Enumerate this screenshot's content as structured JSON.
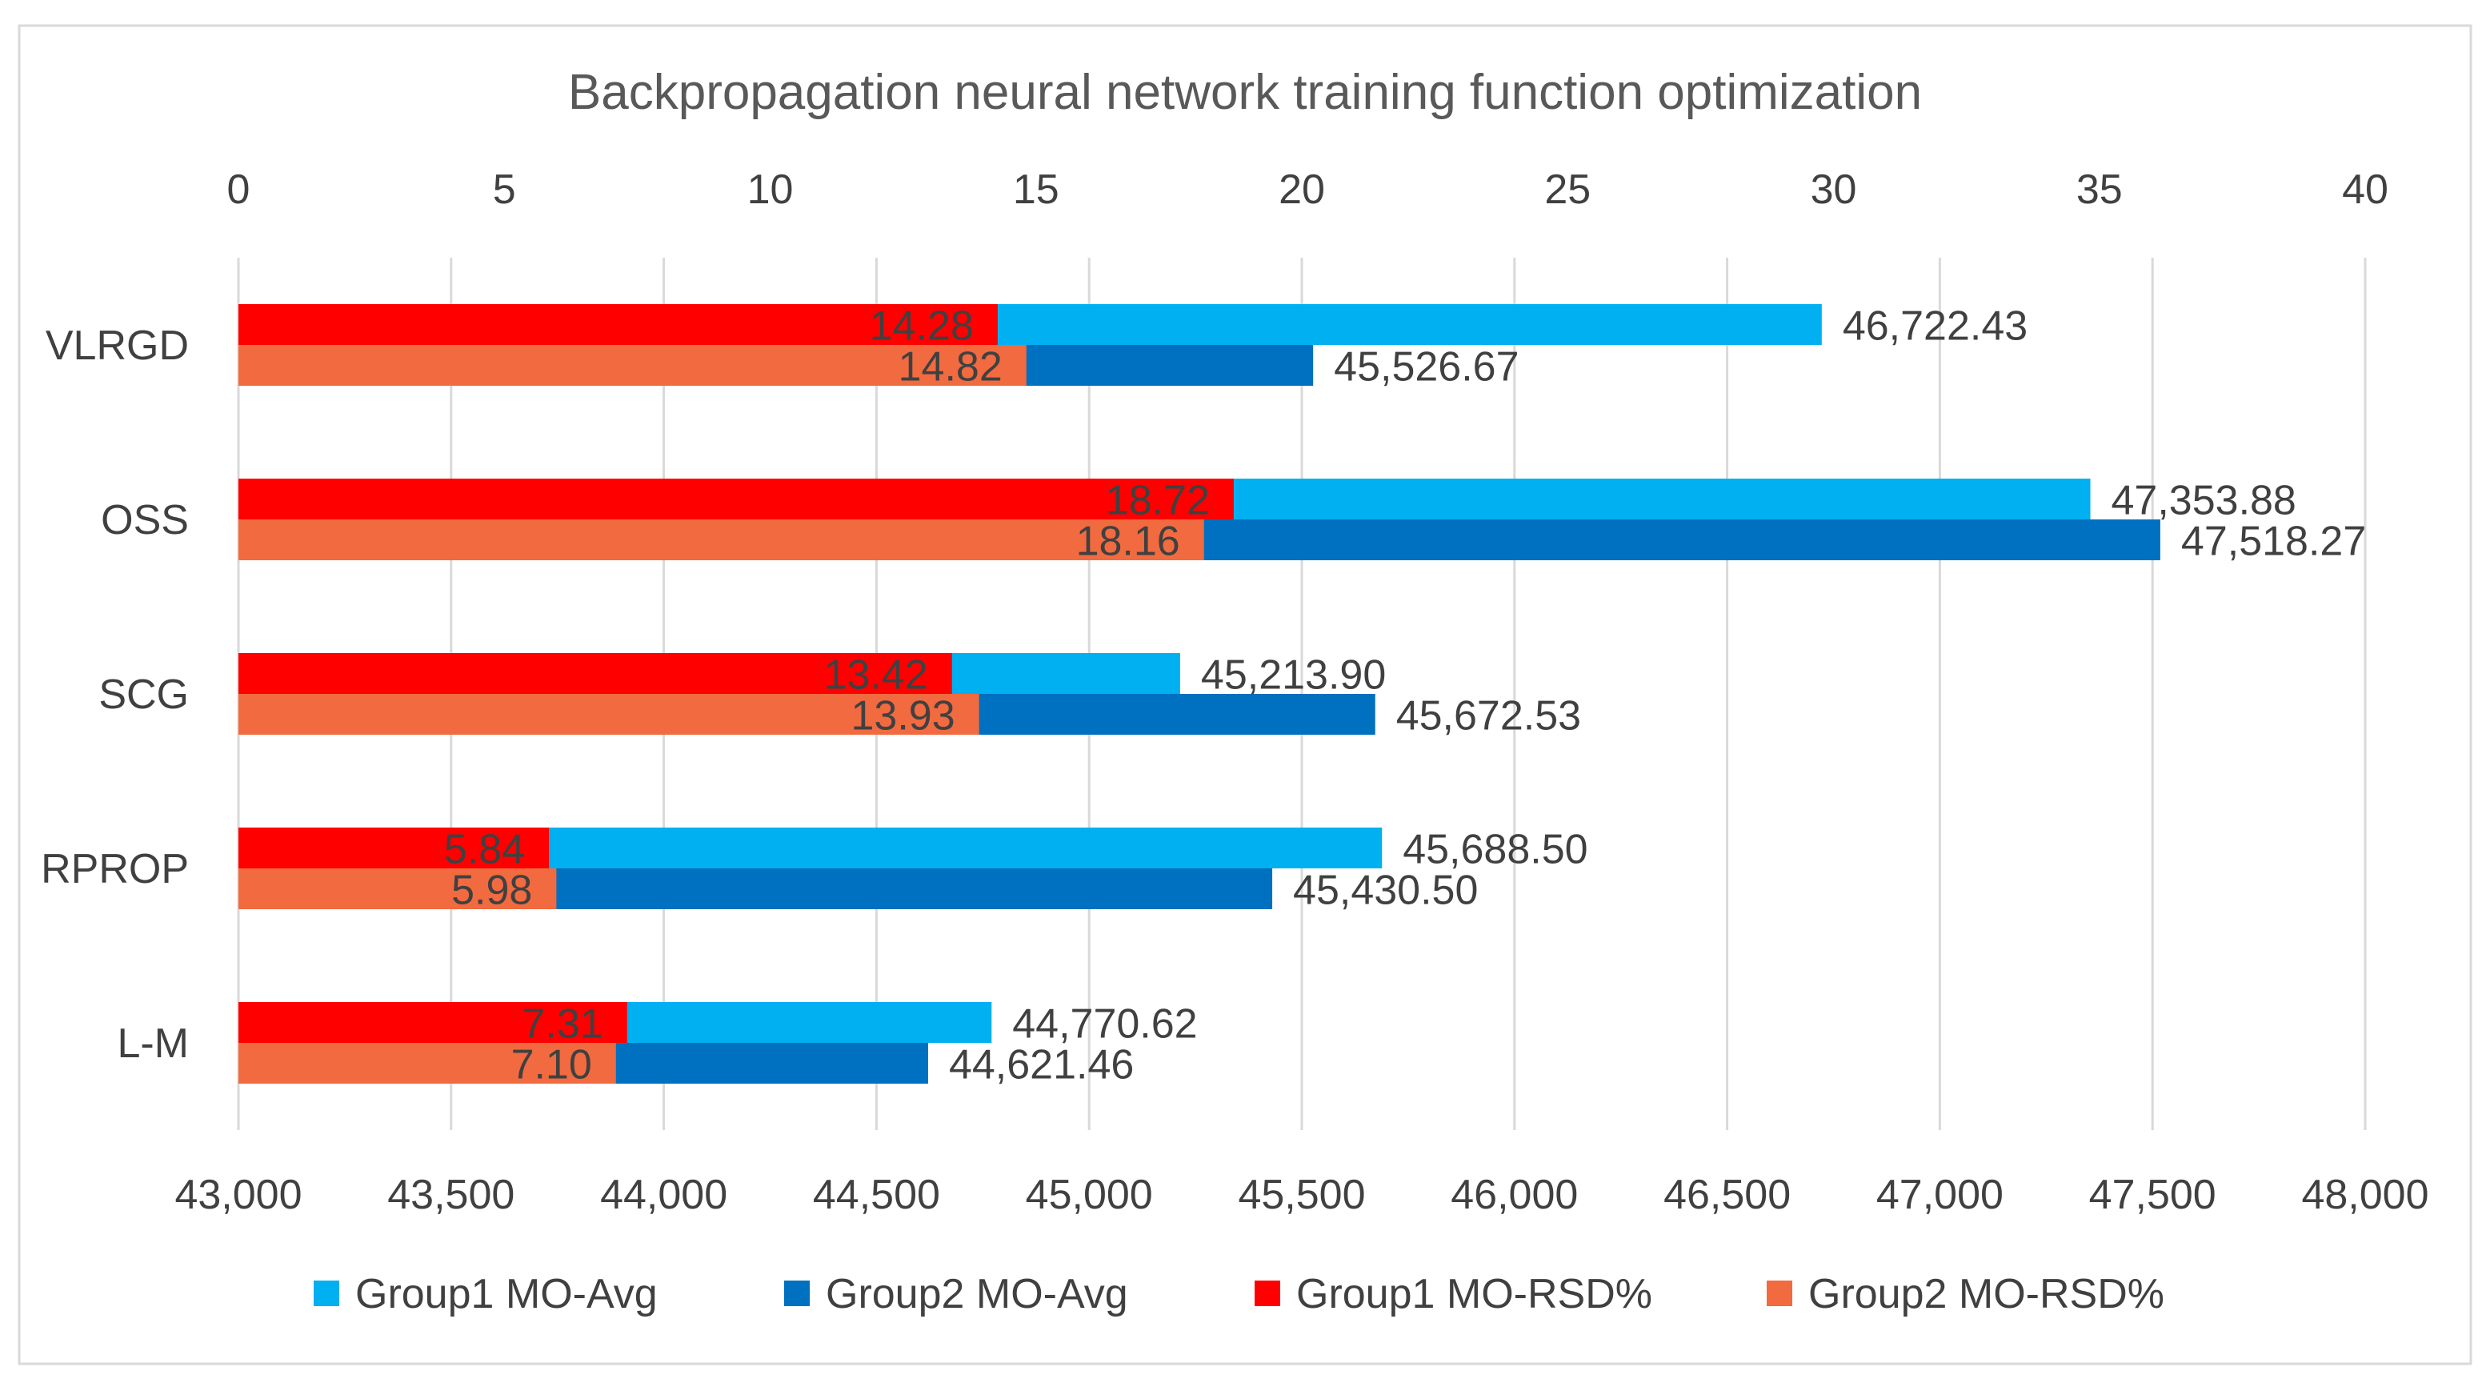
{
  "chart_data": {
    "type": "bar",
    "orientation": "horizontal",
    "title": "Backpropagation neural network training function optimization",
    "categories": [
      "VLRGD",
      "OSS",
      "SCG",
      "RPROP",
      "L-M"
    ],
    "primary_axis": {
      "position": "bottom",
      "range": [
        43000,
        48000
      ],
      "ticks": [
        43000,
        43500,
        44000,
        44500,
        45000,
        45500,
        46000,
        46500,
        47000,
        47500,
        48000
      ],
      "tick_labels": [
        "43,000",
        "43,500",
        "44,000",
        "44,500",
        "45,000",
        "45,500",
        "46,000",
        "46,500",
        "47,000",
        "47,500",
        "48,000"
      ]
    },
    "secondary_axis": {
      "position": "top",
      "range": [
        0,
        40
      ],
      "ticks": [
        0,
        5,
        10,
        15,
        20,
        25,
        30,
        35,
        40
      ],
      "tick_labels": [
        "0",
        "5",
        "10",
        "15",
        "20",
        "25",
        "30",
        "35",
        "40"
      ]
    },
    "grid": true,
    "legend_position": "bottom",
    "series": [
      {
        "name": "Group1 MO-Avg",
        "axis": "primary",
        "color": "#00B0F0",
        "values": [
          46722.43,
          47353.88,
          45213.9,
          45688.5,
          44770.62
        ],
        "labels": [
          "46,722.43",
          "47,353.88",
          "45,213.90",
          "45,688.50",
          "44,770.62"
        ]
      },
      {
        "name": "Group2 MO-Avg",
        "axis": "primary",
        "color": "#0070C0",
        "values": [
          45526.67,
          47518.27,
          45672.53,
          45430.5,
          44621.46
        ],
        "labels": [
          "45,526.67",
          "47,518.27",
          "45,672.53",
          "45,430.50",
          "44,621.46"
        ]
      },
      {
        "name": "Group1 MO-RSD%",
        "axis": "secondary",
        "color": "#FF0000",
        "values": [
          14.28,
          18.72,
          13.42,
          5.84,
          7.31
        ],
        "labels": [
          "14.28",
          "18.72",
          "13.42",
          "5.84",
          "7.31"
        ]
      },
      {
        "name": "Group2 MO-RSD%",
        "axis": "secondary",
        "color": "#F26A3F",
        "values": [
          14.82,
          18.16,
          13.93,
          5.98,
          7.1
        ],
        "labels": [
          "14.82",
          "18.16",
          "13.93",
          "5.98",
          "7.10"
        ]
      }
    ],
    "text_color": "#404040",
    "grid_color": "#D9D9D9",
    "border_color": "#D9D9D9"
  }
}
